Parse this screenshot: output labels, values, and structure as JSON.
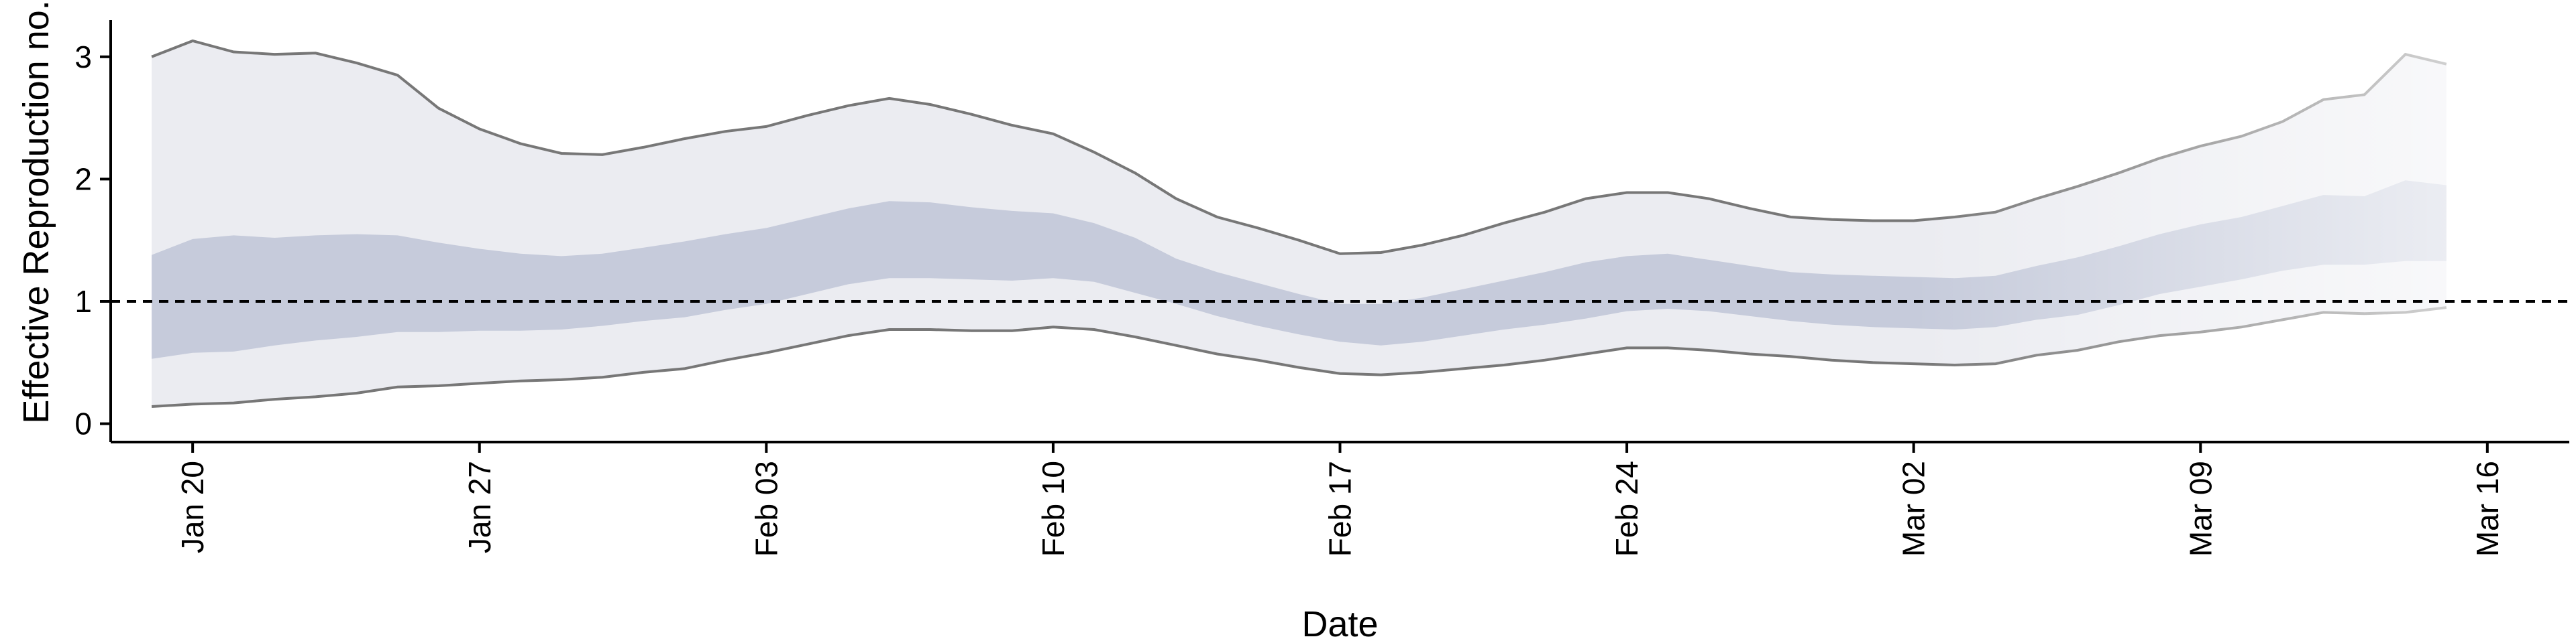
{
  "chart_data": {
    "type": "area",
    "title": "",
    "xlabel": "Date",
    "ylabel": "Effective Reproduction no.",
    "ylim": [
      -0.15,
      3.3
    ],
    "y_ticks": [
      0,
      1,
      2,
      3
    ],
    "x_ticks": [
      {
        "date": "2020-01-20",
        "label": "Jan 20"
      },
      {
        "date": "2020-01-27",
        "label": "Jan 27"
      },
      {
        "date": "2020-02-03",
        "label": "Feb 03"
      },
      {
        "date": "2020-02-10",
        "label": "Feb 10"
      },
      {
        "date": "2020-02-17",
        "label": "Feb 17"
      },
      {
        "date": "2020-02-24",
        "label": "Feb 24"
      },
      {
        "date": "2020-03-02",
        "label": "Mar 02"
      },
      {
        "date": "2020-03-09",
        "label": "Mar 09"
      },
      {
        "date": "2020-03-16",
        "label": "Mar 16"
      }
    ],
    "xlim": [
      "2020-01-18",
      "2020-03-18"
    ],
    "reference_line": {
      "y": 1,
      "style": "dashed"
    },
    "grid": false,
    "x": [
      "2020-01-19",
      "2020-01-20",
      "2020-01-21",
      "2020-01-22",
      "2020-01-23",
      "2020-01-24",
      "2020-01-25",
      "2020-01-26",
      "2020-01-27",
      "2020-01-28",
      "2020-01-29",
      "2020-01-30",
      "2020-01-31",
      "2020-02-01",
      "2020-02-02",
      "2020-02-03",
      "2020-02-04",
      "2020-02-05",
      "2020-02-06",
      "2020-02-07",
      "2020-02-08",
      "2020-02-09",
      "2020-02-10",
      "2020-02-11",
      "2020-02-12",
      "2020-02-13",
      "2020-02-14",
      "2020-02-15",
      "2020-02-16",
      "2020-02-17",
      "2020-02-18",
      "2020-02-19",
      "2020-02-20",
      "2020-02-21",
      "2020-02-22",
      "2020-02-23",
      "2020-02-24",
      "2020-02-25",
      "2020-02-26",
      "2020-02-27",
      "2020-02-28",
      "2020-02-29",
      "2020-03-01",
      "2020-03-02",
      "2020-03-03",
      "2020-03-04",
      "2020-03-05",
      "2020-03-06",
      "2020-03-07",
      "2020-03-08",
      "2020-03-09",
      "2020-03-10",
      "2020-03-11",
      "2020-03-12",
      "2020-03-13",
      "2020-03-14",
      "2020-03-15"
    ],
    "series": [
      {
        "kind": "outer-upper",
        "values": [
          3.0,
          3.13,
          3.04,
          3.02,
          3.03,
          2.95,
          2.85,
          2.58,
          2.41,
          2.29,
          2.21,
          2.2,
          2.26,
          2.33,
          2.39,
          2.43,
          2.52,
          2.6,
          2.66,
          2.61,
          2.53,
          2.44,
          2.37,
          2.22,
          2.05,
          1.84,
          1.69,
          1.6,
          1.5,
          1.39,
          1.4,
          1.46,
          1.54,
          1.64,
          1.73,
          1.84,
          1.89,
          1.89,
          1.84,
          1.76,
          1.69,
          1.67,
          1.66,
          1.66,
          1.69,
          1.73,
          1.84,
          1.94,
          2.05,
          2.17,
          2.27,
          2.35,
          2.47,
          2.65,
          2.69,
          3.02,
          2.94
        ]
      },
      {
        "kind": "inner-upper",
        "values": [
          1.38,
          1.51,
          1.54,
          1.52,
          1.54,
          1.55,
          1.54,
          1.48,
          1.43,
          1.39,
          1.37,
          1.39,
          1.44,
          1.49,
          1.55,
          1.6,
          1.68,
          1.76,
          1.82,
          1.81,
          1.77,
          1.74,
          1.72,
          1.64,
          1.52,
          1.35,
          1.24,
          1.15,
          1.06,
          0.98,
          0.98,
          1.03,
          1.1,
          1.17,
          1.24,
          1.32,
          1.37,
          1.39,
          1.34,
          1.29,
          1.24,
          1.22,
          1.21,
          1.2,
          1.19,
          1.21,
          1.29,
          1.36,
          1.45,
          1.55,
          1.63,
          1.69,
          1.78,
          1.87,
          1.86,
          1.99,
          1.95
        ]
      },
      {
        "kind": "inner-lower",
        "values": [
          0.53,
          0.58,
          0.59,
          0.64,
          0.68,
          0.71,
          0.75,
          0.75,
          0.76,
          0.76,
          0.77,
          0.8,
          0.84,
          0.87,
          0.93,
          0.98,
          1.06,
          1.14,
          1.19,
          1.19,
          1.18,
          1.17,
          1.19,
          1.16,
          1.07,
          0.98,
          0.88,
          0.8,
          0.73,
          0.67,
          0.64,
          0.67,
          0.72,
          0.77,
          0.81,
          0.86,
          0.92,
          0.94,
          0.92,
          0.88,
          0.84,
          0.81,
          0.79,
          0.78,
          0.77,
          0.79,
          0.85,
          0.89,
          0.97,
          1.06,
          1.12,
          1.18,
          1.25,
          1.3,
          1.3,
          1.33,
          1.33
        ]
      },
      {
        "kind": "outer-lower",
        "values": [
          0.14,
          0.16,
          0.17,
          0.2,
          0.22,
          0.25,
          0.3,
          0.31,
          0.33,
          0.35,
          0.36,
          0.38,
          0.42,
          0.45,
          0.52,
          0.58,
          0.65,
          0.72,
          0.77,
          0.77,
          0.76,
          0.76,
          0.79,
          0.77,
          0.71,
          0.64,
          0.57,
          0.52,
          0.46,
          0.41,
          0.4,
          0.42,
          0.45,
          0.48,
          0.52,
          0.57,
          0.62,
          0.62,
          0.6,
          0.57,
          0.55,
          0.52,
          0.5,
          0.49,
          0.48,
          0.49,
          0.56,
          0.6,
          0.67,
          0.72,
          0.75,
          0.79,
          0.85,
          0.91,
          0.9,
          0.91,
          0.95
        ]
      }
    ],
    "colors": {
      "outer_band": "#ebecf1",
      "inner_band": "#c6cbdb",
      "outer_line": "#777777",
      "reference_line": "#000000",
      "axis": "#000000"
    },
    "fade_start_date": "2020-03-02"
  }
}
